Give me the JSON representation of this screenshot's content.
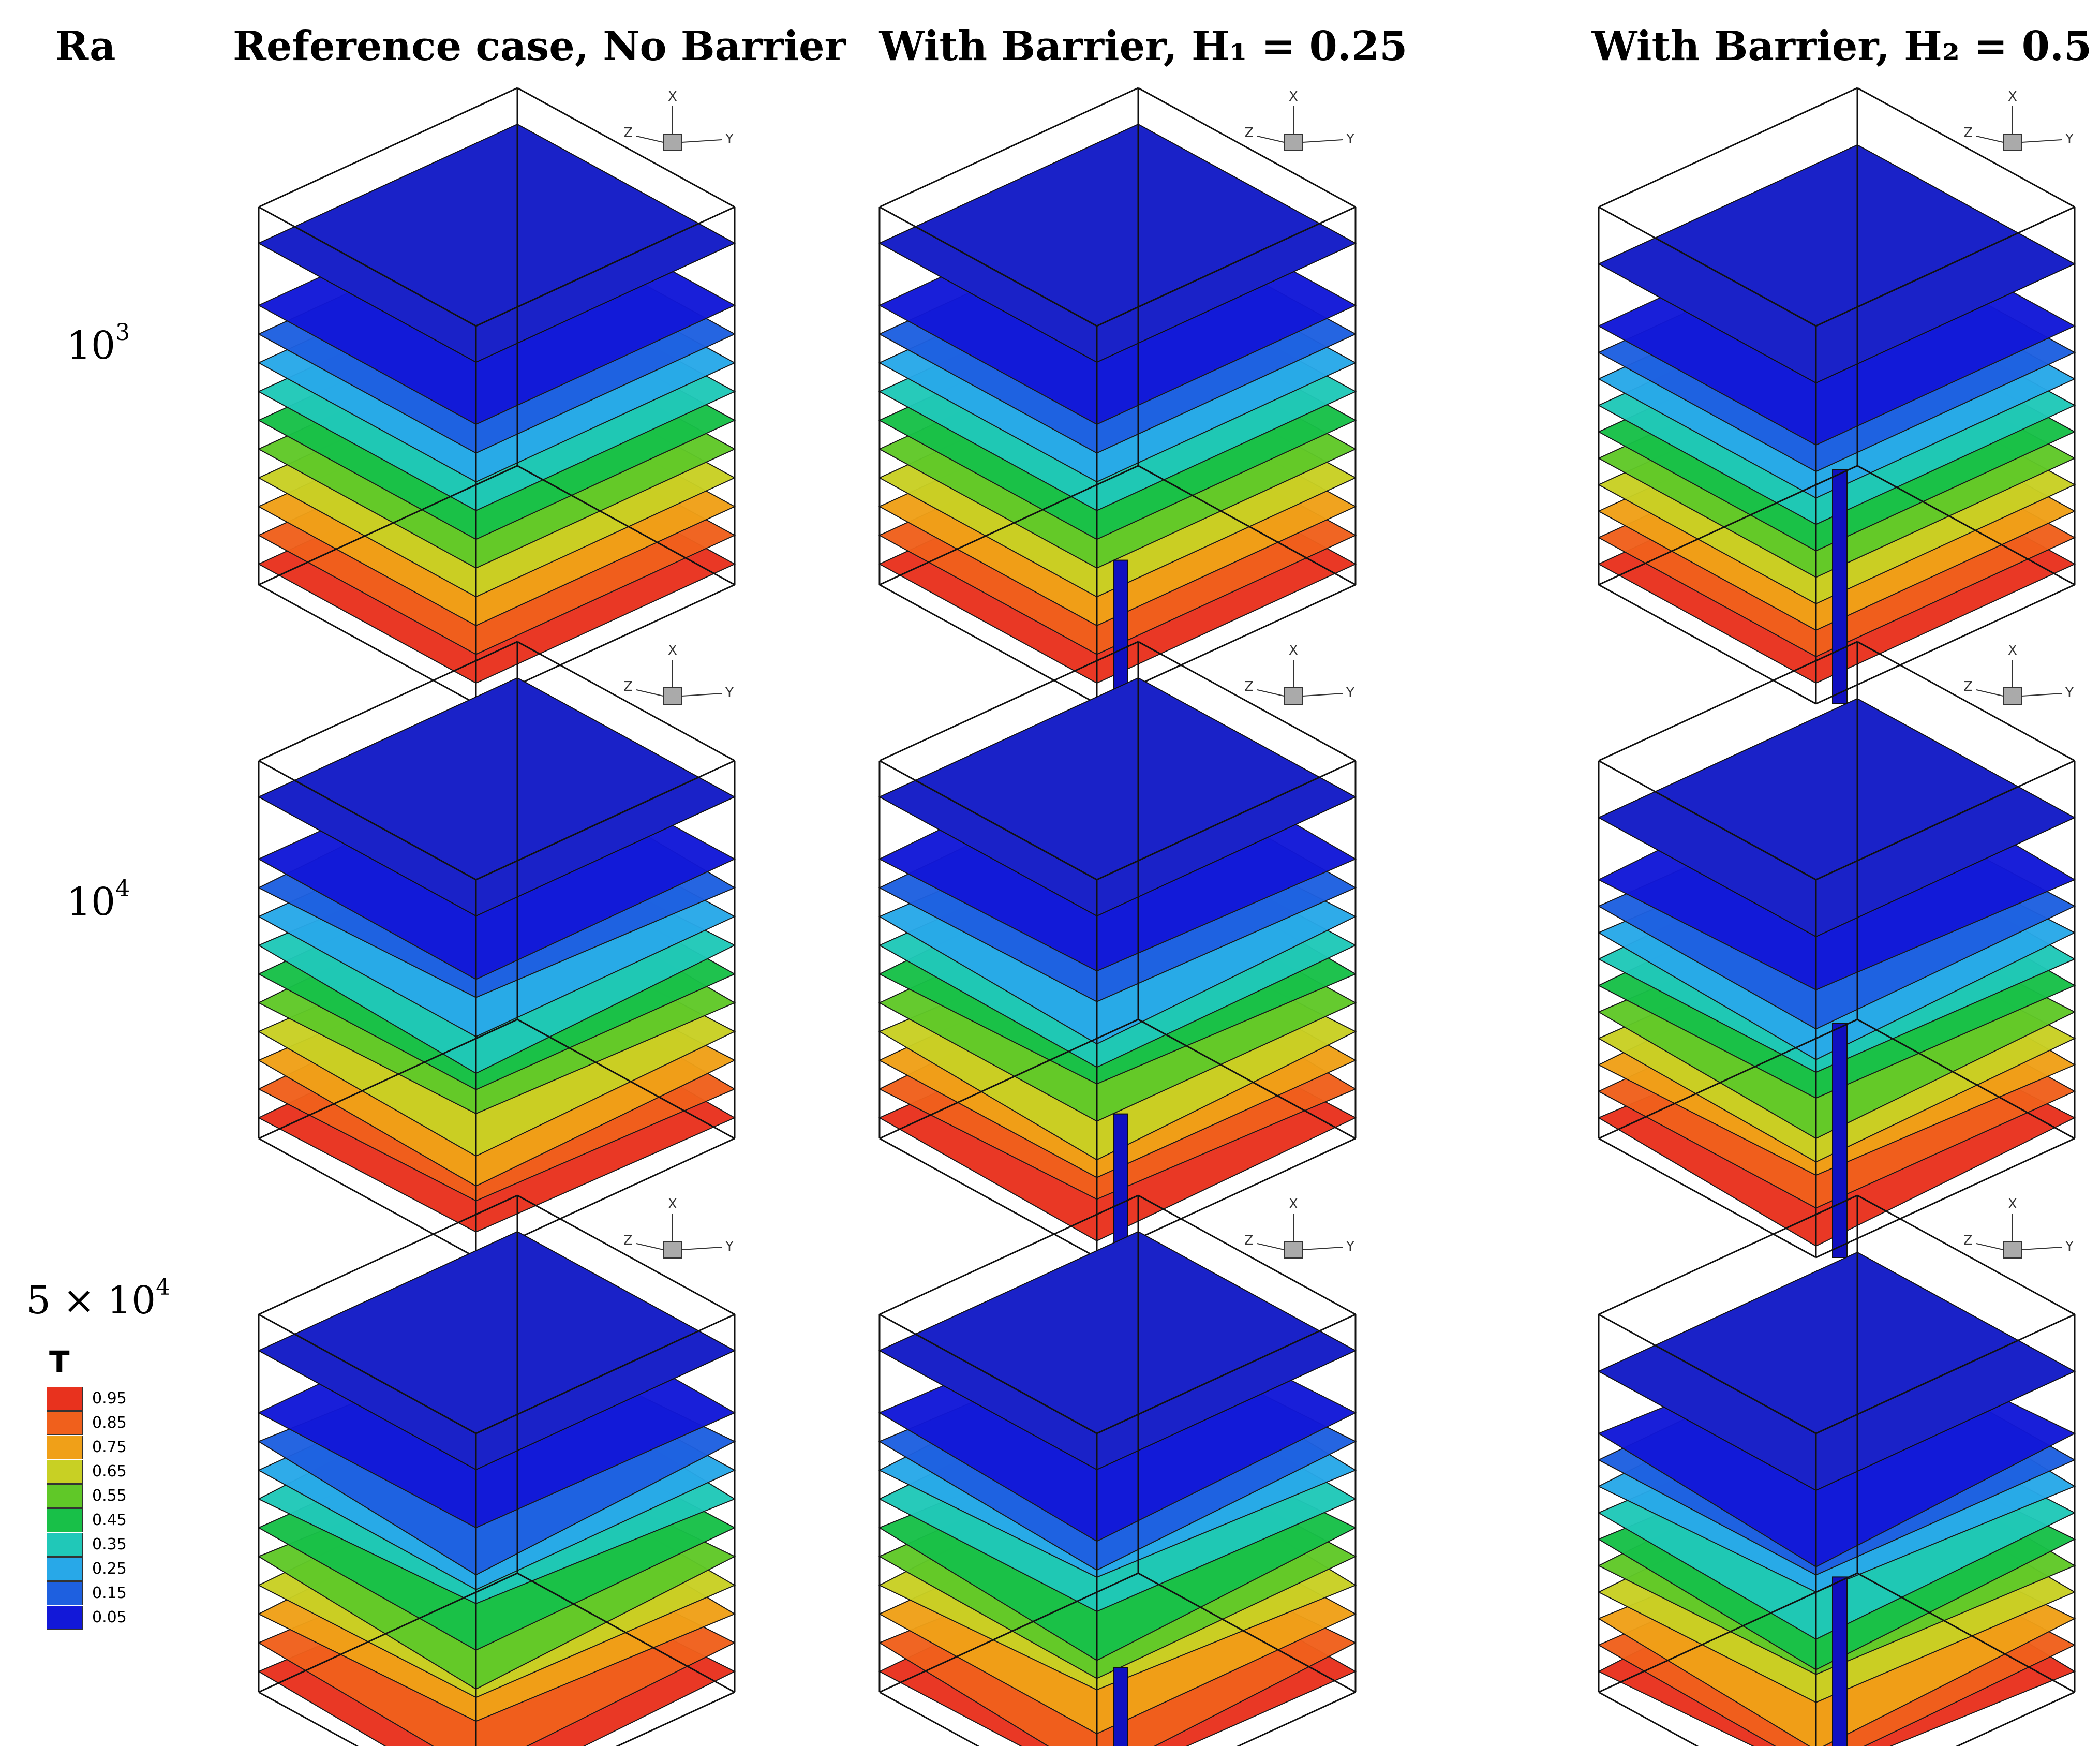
{
  "headers": {
    "ra": "Ra",
    "col1": "Reference case, No Barrier",
    "col2": "With Barrier, H₁ = 0.25",
    "col3": "With Barrier, H₂ = 0.5"
  },
  "rows": [
    {
      "base": "10",
      "exp": "3"
    },
    {
      "base": "10",
      "exp": "4"
    },
    {
      "base": "5 × 10",
      "exp": "4"
    }
  ],
  "axes": {
    "x": "X",
    "y": "Y",
    "z": "Z"
  },
  "legend": {
    "title": "T",
    "levels": [
      "0.95",
      "0.85",
      "0.75",
      "0.65",
      "0.55",
      "0.45",
      "0.35",
      "0.25",
      "0.15",
      "0.05"
    ],
    "colors": [
      "#e8321e",
      "#f0601c",
      "#f0a018",
      "#c8d024",
      "#60c828",
      "#18c048",
      "#20c8b8",
      "#28a8e8",
      "#1e60e0",
      "#1218d8"
    ]
  }
}
